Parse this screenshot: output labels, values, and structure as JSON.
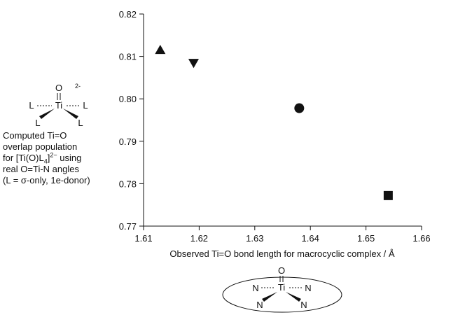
{
  "chart_data": {
    "type": "scatter",
    "xlabel": "Observed Ti=O bond length for macrocyclic complex / Å",
    "ylabel": "",
    "xlim": [
      1.61,
      1.66
    ],
    "ylim": [
      0.77,
      0.82
    ],
    "x_ticks": [
      "1.61",
      "1.62",
      "1.63",
      "1.64",
      "1.65",
      "1.66"
    ],
    "y_ticks": [
      "0.77",
      "0.78",
      "0.79",
      "0.80",
      "0.81",
      "0.82"
    ],
    "grid": false,
    "points": [
      {
        "x": 1.613,
        "y": 0.8115,
        "marker": "triangle-up"
      },
      {
        "x": 1.619,
        "y": 0.8085,
        "marker": "triangle-down"
      },
      {
        "x": 1.638,
        "y": 0.7978,
        "marker": "circle"
      },
      {
        "x": 1.654,
        "y": 0.7772,
        "marker": "square"
      }
    ]
  },
  "annotation": {
    "line1": "Computed Ti=O",
    "line2": "overlap population",
    "line3_pre": "for [Ti(O)L",
    "line3_sub": "4",
    "line3_mid": "]",
    "line3_sup": "2−",
    "line3_post": " using",
    "line4": "real O=Ti-N angles",
    "line5": "(L = σ-only, 1e-donor)"
  },
  "structures": {
    "top": {
      "oxygen": "O",
      "metal": "Ti",
      "ligand": "L",
      "charge": "2-"
    },
    "bottom": {
      "oxygen": "O",
      "metal": "Ti",
      "ligand": "N"
    }
  }
}
